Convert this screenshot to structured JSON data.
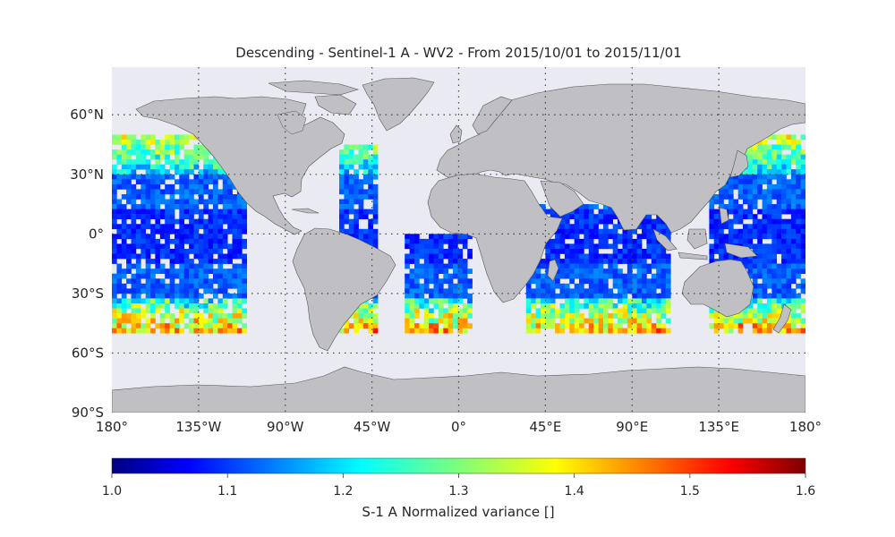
{
  "title": "Descending - Sentinel-1 A - WV2 - From 2015/10/01 to 2015/11/01",
  "map": {
    "lon_range": [
      -180,
      180
    ],
    "lat_range": [
      -90,
      90
    ],
    "lat_labels": [
      {
        "lat": 60,
        "text": "60°N"
      },
      {
        "lat": 30,
        "text": "30°N"
      },
      {
        "lat": 0,
        "text": "0°"
      },
      {
        "lat": -30,
        "text": "30°S"
      },
      {
        "lat": -60,
        "text": "60°S"
      },
      {
        "lat": -90,
        "text": "90°S"
      }
    ],
    "lon_labels": [
      {
        "lon": -180,
        "text": "180°"
      },
      {
        "lon": -135,
        "text": "135°W"
      },
      {
        "lon": -90,
        "text": "90°W"
      },
      {
        "lon": -45,
        "text": "45°W"
      },
      {
        "lon": 0,
        "text": "0°"
      },
      {
        "lon": 45,
        "text": "45°E"
      },
      {
        "lon": 90,
        "text": "90°E"
      },
      {
        "lon": 135,
        "text": "135°E"
      },
      {
        "lon": 180,
        "text": "180°"
      }
    ],
    "gridline_lats": [
      60,
      30,
      0,
      -30,
      -60
    ],
    "gridline_lons": [
      -135,
      -90,
      -45,
      0,
      45,
      90,
      135
    ],
    "colors": {
      "ocean": "#eaeaf2",
      "land": "#c0c0c4",
      "coast": "#555555",
      "grid": "#444444"
    },
    "coverage_lat_range": [
      -50,
      50
    ],
    "swaths": [
      {
        "name": "pacific",
        "lon": [
          -180,
          -110
        ],
        "lat": [
          -50,
          50
        ]
      },
      {
        "name": "west-atlantic",
        "lon": [
          -62,
          -42
        ],
        "lat": [
          -50,
          45
        ]
      },
      {
        "name": "east-atlantic",
        "lon": [
          -28,
          5
        ],
        "lat": [
          -50,
          0
        ]
      },
      {
        "name": "indian",
        "lon": [
          35,
          110
        ],
        "lat": [
          -50,
          15
        ]
      },
      {
        "name": "west-pacific",
        "lon": [
          130,
          180
        ],
        "lat": [
          -50,
          50
        ]
      }
    ]
  },
  "colorbar": {
    "label": "S-1 A Normalized variance []",
    "min": 1.0,
    "max": 1.6,
    "colormap": "jet",
    "ticks": [
      "1.0",
      "1.1",
      "1.2",
      "1.3",
      "1.4",
      "1.5",
      "1.6"
    ]
  }
}
